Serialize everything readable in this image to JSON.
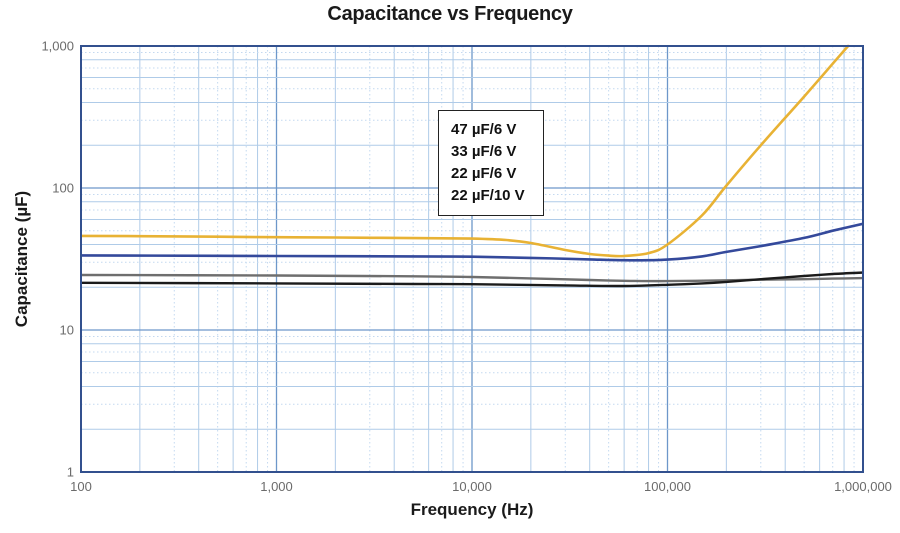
{
  "chart_data": {
    "type": "line",
    "title": "Capacitance vs Frequency",
    "xlabel": "Frequency (Hz)",
    "ylabel": "Capacitance (µF)",
    "x_scale": "log",
    "y_scale": "log",
    "xlim": [
      100,
      1000000
    ],
    "ylim": [
      1,
      1000
    ],
    "grid": "on",
    "x_ticks": {
      "values": [
        100,
        1000,
        10000,
        100000,
        1000000
      ],
      "labels": [
        "100",
        "1,000",
        "10,000",
        "100,000",
        "1,000,000"
      ]
    },
    "y_ticks": {
      "values": [
        1000,
        100,
        10,
        1
      ],
      "labels": [
        "1,000",
        "100",
        "10",
        "1"
      ]
    },
    "legend": {
      "position": "inside-top-center",
      "entries": [
        "47 µF/6 V",
        "33 µF/6 V",
        "22 µF/6 V",
        "22 µF/10 V"
      ]
    },
    "series": [
      {
        "name": "47 µF/6 V",
        "color": "#E8B234",
        "stroke_width": 2.6,
        "points": [
          [
            100,
            46
          ],
          [
            200,
            45.8
          ],
          [
            500,
            45.4
          ],
          [
            1000,
            45
          ],
          [
            2000,
            44.8
          ],
          [
            5000,
            44.4
          ],
          [
            10000,
            44
          ],
          [
            15000,
            43
          ],
          [
            20000,
            41
          ],
          [
            30000,
            36.6
          ],
          [
            40000,
            34.3
          ],
          [
            50000,
            33.4
          ],
          [
            60000,
            33.2
          ],
          [
            80000,
            34.8
          ],
          [
            100000,
            40
          ],
          [
            150000,
            64
          ],
          [
            200000,
            104
          ],
          [
            300000,
            200
          ],
          [
            500000,
            440
          ],
          [
            700000,
            750
          ],
          [
            839000,
            1000
          ]
        ]
      },
      {
        "name": "33 µF/6 V",
        "color": "#34499B",
        "stroke_width": 2.6,
        "points": [
          [
            100,
            33.5
          ],
          [
            500,
            33.3
          ],
          [
            1000,
            33.2
          ],
          [
            5000,
            33
          ],
          [
            10000,
            32.8
          ],
          [
            20000,
            32.2
          ],
          [
            40000,
            31.4
          ],
          [
            60000,
            31
          ],
          [
            80000,
            31
          ],
          [
            100000,
            31.3
          ],
          [
            150000,
            33
          ],
          [
            200000,
            35.5
          ],
          [
            300000,
            39
          ],
          [
            500000,
            44.5
          ],
          [
            700000,
            50
          ],
          [
            1000000,
            56
          ]
        ]
      },
      {
        "name": "22 µF/6 V",
        "color": "#6E6E6E",
        "stroke_width": 2.4,
        "points": [
          [
            100,
            24.4
          ],
          [
            1000,
            24.2
          ],
          [
            5000,
            23.9
          ],
          [
            10000,
            23.6
          ],
          [
            20000,
            23.1
          ],
          [
            40000,
            22.5
          ],
          [
            60000,
            22.2
          ],
          [
            100000,
            22.1
          ],
          [
            200000,
            22.4
          ],
          [
            300000,
            22.6
          ],
          [
            500000,
            22.8
          ],
          [
            700000,
            23.0
          ],
          [
            1000000,
            23.2
          ]
        ]
      },
      {
        "name": "22 µF/10 V",
        "color": "#1B1B1B",
        "stroke_width": 2.4,
        "points": [
          [
            100,
            21.5
          ],
          [
            1000,
            21.3
          ],
          [
            5000,
            21.1
          ],
          [
            10000,
            21
          ],
          [
            30000,
            20.6
          ],
          [
            60000,
            20.4
          ],
          [
            100000,
            20.8
          ],
          [
            150000,
            21.3
          ],
          [
            200000,
            21.8
          ],
          [
            300000,
            22.8
          ],
          [
            500000,
            24
          ],
          [
            700000,
            24.8
          ],
          [
            1000000,
            25.4
          ]
        ]
      }
    ],
    "style_colors": {
      "plot_border": "#32508E",
      "grid_major": "#6D97CA",
      "grid_minor_solid": "#AFCBE8",
      "grid_minor_dashed": "#C4D9F0",
      "tick_text": "#6B6B6B",
      "title_text": "#1A1A1A"
    }
  }
}
